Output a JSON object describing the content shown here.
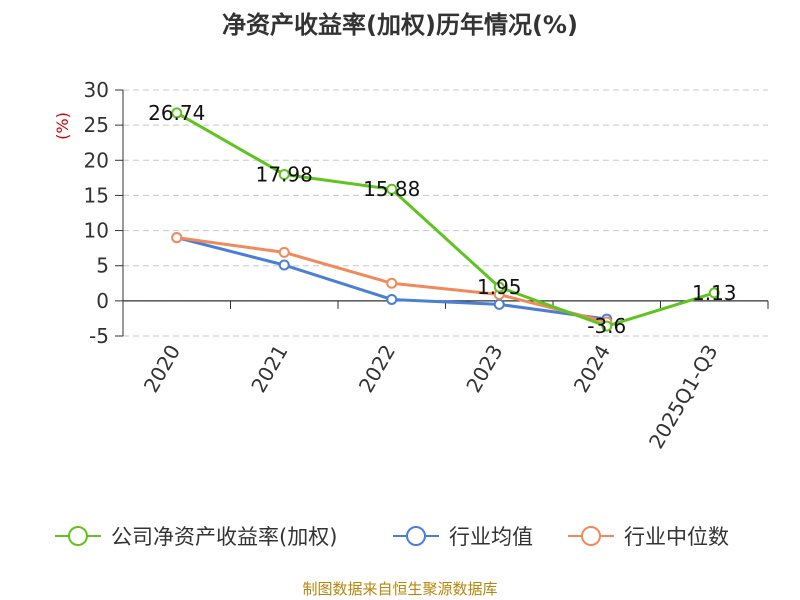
{
  "chart_data": {
    "type": "line",
    "title": "净资产收益率(加权)历年情况(%)",
    "ylabel": "(%)",
    "categories": [
      "2020",
      "2021",
      "2022",
      "2023",
      "2024",
      "2025Q1-Q3"
    ],
    "ylim": [
      -5,
      30
    ],
    "yticks": [
      30,
      25,
      20,
      15,
      10,
      5,
      0,
      -5
    ],
    "grid": true,
    "legend_position": "bottom",
    "series": [
      {
        "name": "公司净资产收益率(加权)",
        "color": "#5fc41f",
        "values": [
          26.74,
          17.98,
          15.88,
          1.95,
          -3.6,
          1.13
        ],
        "labels": [
          "26.74",
          "17.98",
          "15.88",
          "1.95",
          "-3.6",
          "1.13"
        ]
      },
      {
        "name": "行业均值",
        "color": "#4a7fd6",
        "values": [
          9.0,
          5.1,
          0.2,
          -0.5,
          -2.6,
          null
        ]
      },
      {
        "name": "行业中位数",
        "color": "#f08a5a",
        "values": [
          9.0,
          6.9,
          2.5,
          0.9,
          -3.0,
          null
        ]
      }
    ]
  },
  "source": "制图数据来自恒生聚源数据库"
}
